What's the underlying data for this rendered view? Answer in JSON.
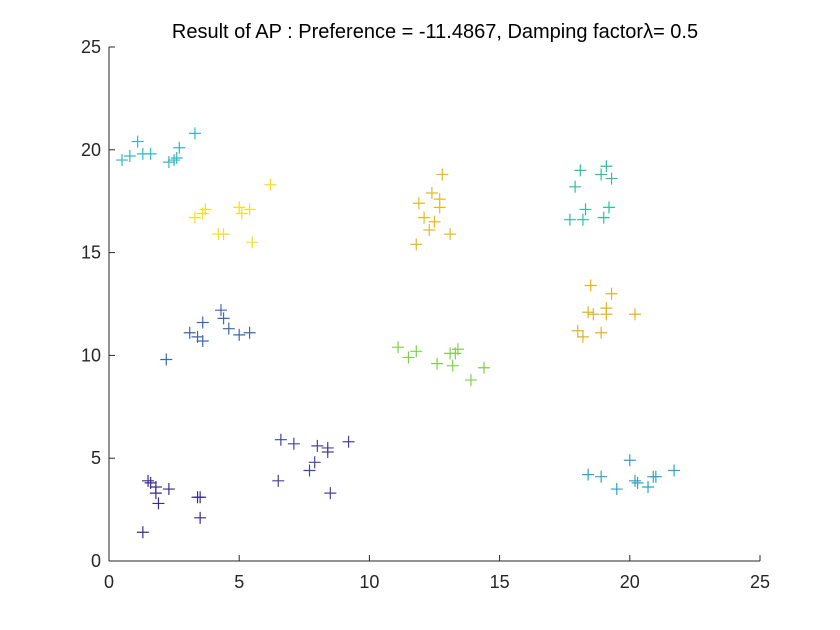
{
  "chart_data": {
    "type": "scatter",
    "title": "Result of AP : Preference = -11.4867, Damping factorλ= 0.5",
    "xlabel": "",
    "ylabel": "",
    "xlim": [
      0,
      25
    ],
    "ylim": [
      0,
      25
    ],
    "xticks": [
      "0",
      "5",
      "10",
      "15",
      "20",
      "25"
    ],
    "yticks": [
      "0",
      "5",
      "10",
      "15",
      "20",
      "25"
    ],
    "marker": "+",
    "grid": false,
    "series": [
      {
        "color": "#3a2c8c",
        "points": [
          [
            1.3,
            1.4
          ],
          [
            1.5,
            3.9
          ],
          [
            1.6,
            3.8
          ],
          [
            1.8,
            3.3
          ],
          [
            1.8,
            3.6
          ],
          [
            1.9,
            2.8
          ],
          [
            2.3,
            3.5
          ],
          [
            3.4,
            3.1
          ],
          [
            3.5,
            3.1
          ],
          [
            3.5,
            2.1
          ]
        ]
      },
      {
        "color": "#44459a",
        "points": [
          [
            6.6,
            5.9
          ],
          [
            6.5,
            3.9
          ],
          [
            7.1,
            5.7
          ],
          [
            7.7,
            4.4
          ],
          [
            7.9,
            4.8
          ],
          [
            8.0,
            5.6
          ],
          [
            8.4,
            5.3
          ],
          [
            8.4,
            5.5
          ],
          [
            8.5,
            3.3
          ],
          [
            9.2,
            5.8
          ]
        ]
      },
      {
        "color": "#3f67ad",
        "points": [
          [
            2.2,
            9.8
          ],
          [
            3.1,
            11.1
          ],
          [
            3.4,
            10.9
          ],
          [
            3.6,
            11.6
          ],
          [
            3.6,
            10.7
          ],
          [
            4.3,
            12.2
          ],
          [
            4.4,
            11.8
          ],
          [
            4.6,
            11.3
          ],
          [
            5.0,
            11.0
          ],
          [
            5.4,
            11.1
          ]
        ]
      },
      {
        "color": "#2ea3c8",
        "points": [
          [
            18.4,
            4.2
          ],
          [
            18.9,
            4.1
          ],
          [
            19.5,
            3.5
          ],
          [
            20.0,
            4.9
          ],
          [
            20.2,
            3.9
          ],
          [
            20.3,
            3.8
          ],
          [
            20.7,
            3.6
          ],
          [
            20.9,
            4.1
          ],
          [
            21.0,
            4.1
          ],
          [
            21.7,
            4.4
          ]
        ]
      },
      {
        "color": "#33b7c4",
        "points": [
          [
            0.5,
            19.5
          ],
          [
            0.8,
            19.7
          ],
          [
            1.1,
            20.4
          ],
          [
            1.3,
            19.8
          ],
          [
            1.6,
            19.8
          ],
          [
            2.3,
            19.4
          ],
          [
            2.5,
            19.5
          ],
          [
            2.6,
            19.6
          ],
          [
            2.7,
            20.1
          ],
          [
            3.3,
            20.8
          ]
        ]
      },
      {
        "color": "#2fbf9c",
        "points": [
          [
            17.7,
            16.6
          ],
          [
            17.9,
            18.2
          ],
          [
            18.1,
            19.0
          ],
          [
            18.2,
            16.6
          ],
          [
            18.3,
            17.1
          ],
          [
            18.9,
            18.8
          ],
          [
            19.0,
            16.7
          ],
          [
            19.1,
            19.2
          ],
          [
            19.2,
            17.2
          ],
          [
            19.3,
            18.6
          ]
        ]
      },
      {
        "color": "#7ed04d",
        "points": [
          [
            11.1,
            10.4
          ],
          [
            11.5,
            9.9
          ],
          [
            11.8,
            10.2
          ],
          [
            12.6,
            9.6
          ],
          [
            13.1,
            10.1
          ],
          [
            13.2,
            9.5
          ],
          [
            13.3,
            10.1
          ],
          [
            13.4,
            10.3
          ],
          [
            13.9,
            8.8
          ],
          [
            14.4,
            9.4
          ]
        ]
      },
      {
        "color": "#e6b923",
        "points": [
          [
            11.8,
            15.4
          ],
          [
            11.9,
            17.4
          ],
          [
            12.1,
            16.7
          ],
          [
            12.3,
            16.1
          ],
          [
            12.4,
            17.9
          ],
          [
            12.5,
            16.5
          ],
          [
            12.7,
            17.2
          ],
          [
            12.7,
            17.6
          ],
          [
            12.8,
            18.8
          ],
          [
            13.1,
            15.9
          ]
        ]
      },
      {
        "color": "#e3b320",
        "points": [
          [
            18.0,
            11.2
          ],
          [
            18.2,
            10.9
          ],
          [
            18.4,
            12.1
          ],
          [
            18.5,
            13.4
          ],
          [
            18.6,
            12.0
          ],
          [
            18.9,
            11.1
          ],
          [
            19.1,
            12.0
          ],
          [
            19.1,
            12.3
          ],
          [
            19.3,
            13.0
          ],
          [
            20.2,
            12.0
          ]
        ]
      },
      {
        "color": "#f0e021",
        "points": [
          [
            3.3,
            16.7
          ],
          [
            3.6,
            16.9
          ],
          [
            3.7,
            17.1
          ],
          [
            4.2,
            15.9
          ],
          [
            4.4,
            15.9
          ],
          [
            5.0,
            17.2
          ],
          [
            5.1,
            16.9
          ],
          [
            5.4,
            17.1
          ],
          [
            5.5,
            15.5
          ],
          [
            6.2,
            18.3
          ]
        ]
      }
    ]
  }
}
